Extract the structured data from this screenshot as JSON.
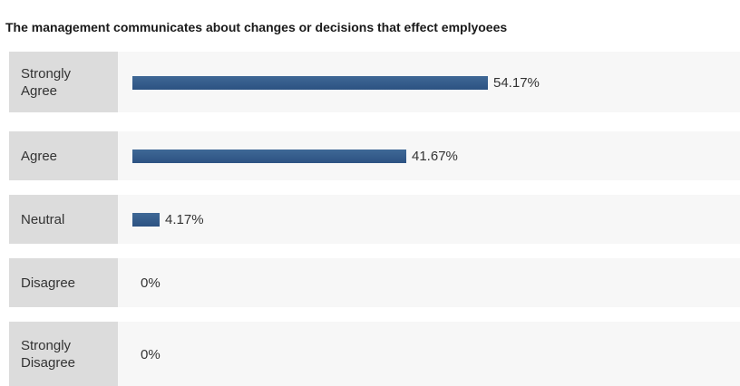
{
  "chart_data": {
    "type": "bar",
    "orientation": "horizontal",
    "title": "The management communicates about changes or decisions that effect emplyoees",
    "categories": [
      "Strongly Agree",
      "Agree",
      "Neutral",
      "Disagree",
      "Strongly Disagree"
    ],
    "category_lines": [
      [
        "Strongly",
        "Agree"
      ],
      [
        "Agree"
      ],
      [
        "Neutral"
      ],
      [
        "Disagree"
      ],
      [
        "Strongly",
        "Disagree"
      ]
    ],
    "values": [
      54.17,
      41.67,
      4.17,
      0,
      0
    ],
    "value_labels": [
      "54.17%",
      "41.67%",
      "4.17%",
      "0%",
      "0%"
    ],
    "bar_color": "#2f5687",
    "grid": false,
    "legend": "none"
  }
}
